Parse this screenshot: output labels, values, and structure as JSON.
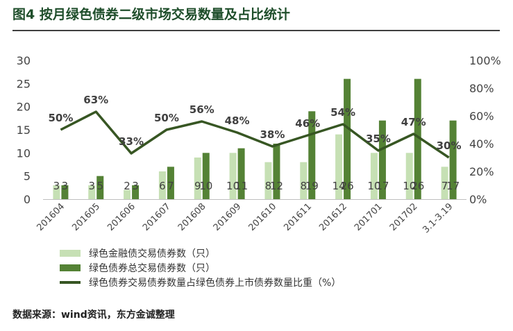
{
  "page": {
    "title": "图4  按月绿色债券二级市场交易数量及占比统计",
    "source": "数据来源：wind资讯，东方金诚整理"
  },
  "chart_data": {
    "type": "bar",
    "categories": [
      "201604",
      "201605",
      "201606",
      "201607",
      "201608",
      "201609",
      "201610",
      "201611",
      "201612",
      "201701",
      "201702",
      "3.1-3.19"
    ],
    "series": [
      {
        "name": "绿色金融债交易债券数（只）",
        "values": [
          3,
          3,
          2,
          6,
          9,
          10,
          8,
          8,
          14,
          10,
          10,
          7
        ],
        "color": "#c6e0b4"
      },
      {
        "name": "绿色债券总交易债券数（只）",
        "values": [
          3,
          5,
          3,
          7,
          10,
          11,
          12,
          19,
          26,
          17,
          26,
          17
        ],
        "color": "#548235"
      },
      {
        "name": "绿色债券交易债券数量占绿色债券上市债券数量比重（%）",
        "type": "line",
        "axis": "right",
        "values": [
          50,
          63,
          33,
          50,
          56,
          48,
          38,
          46,
          54,
          35,
          47,
          30
        ],
        "labels": [
          "50%",
          "63%",
          "33%",
          "50%",
          "56%",
          "48%",
          "38%",
          "46%",
          "54%",
          "35%",
          "47%",
          "30%"
        ],
        "color": "#375623"
      }
    ],
    "y_left": {
      "range": [
        0,
        30
      ],
      "ticks": [
        "0",
        "5",
        "10",
        "15",
        "20",
        "25",
        "30"
      ]
    },
    "y_right": {
      "range": [
        0,
        100
      ],
      "ticks": [
        "0%",
        "20%",
        "40%",
        "60%",
        "80%",
        "100%"
      ]
    },
    "grid": false,
    "legend_position": "bottom-left"
  }
}
